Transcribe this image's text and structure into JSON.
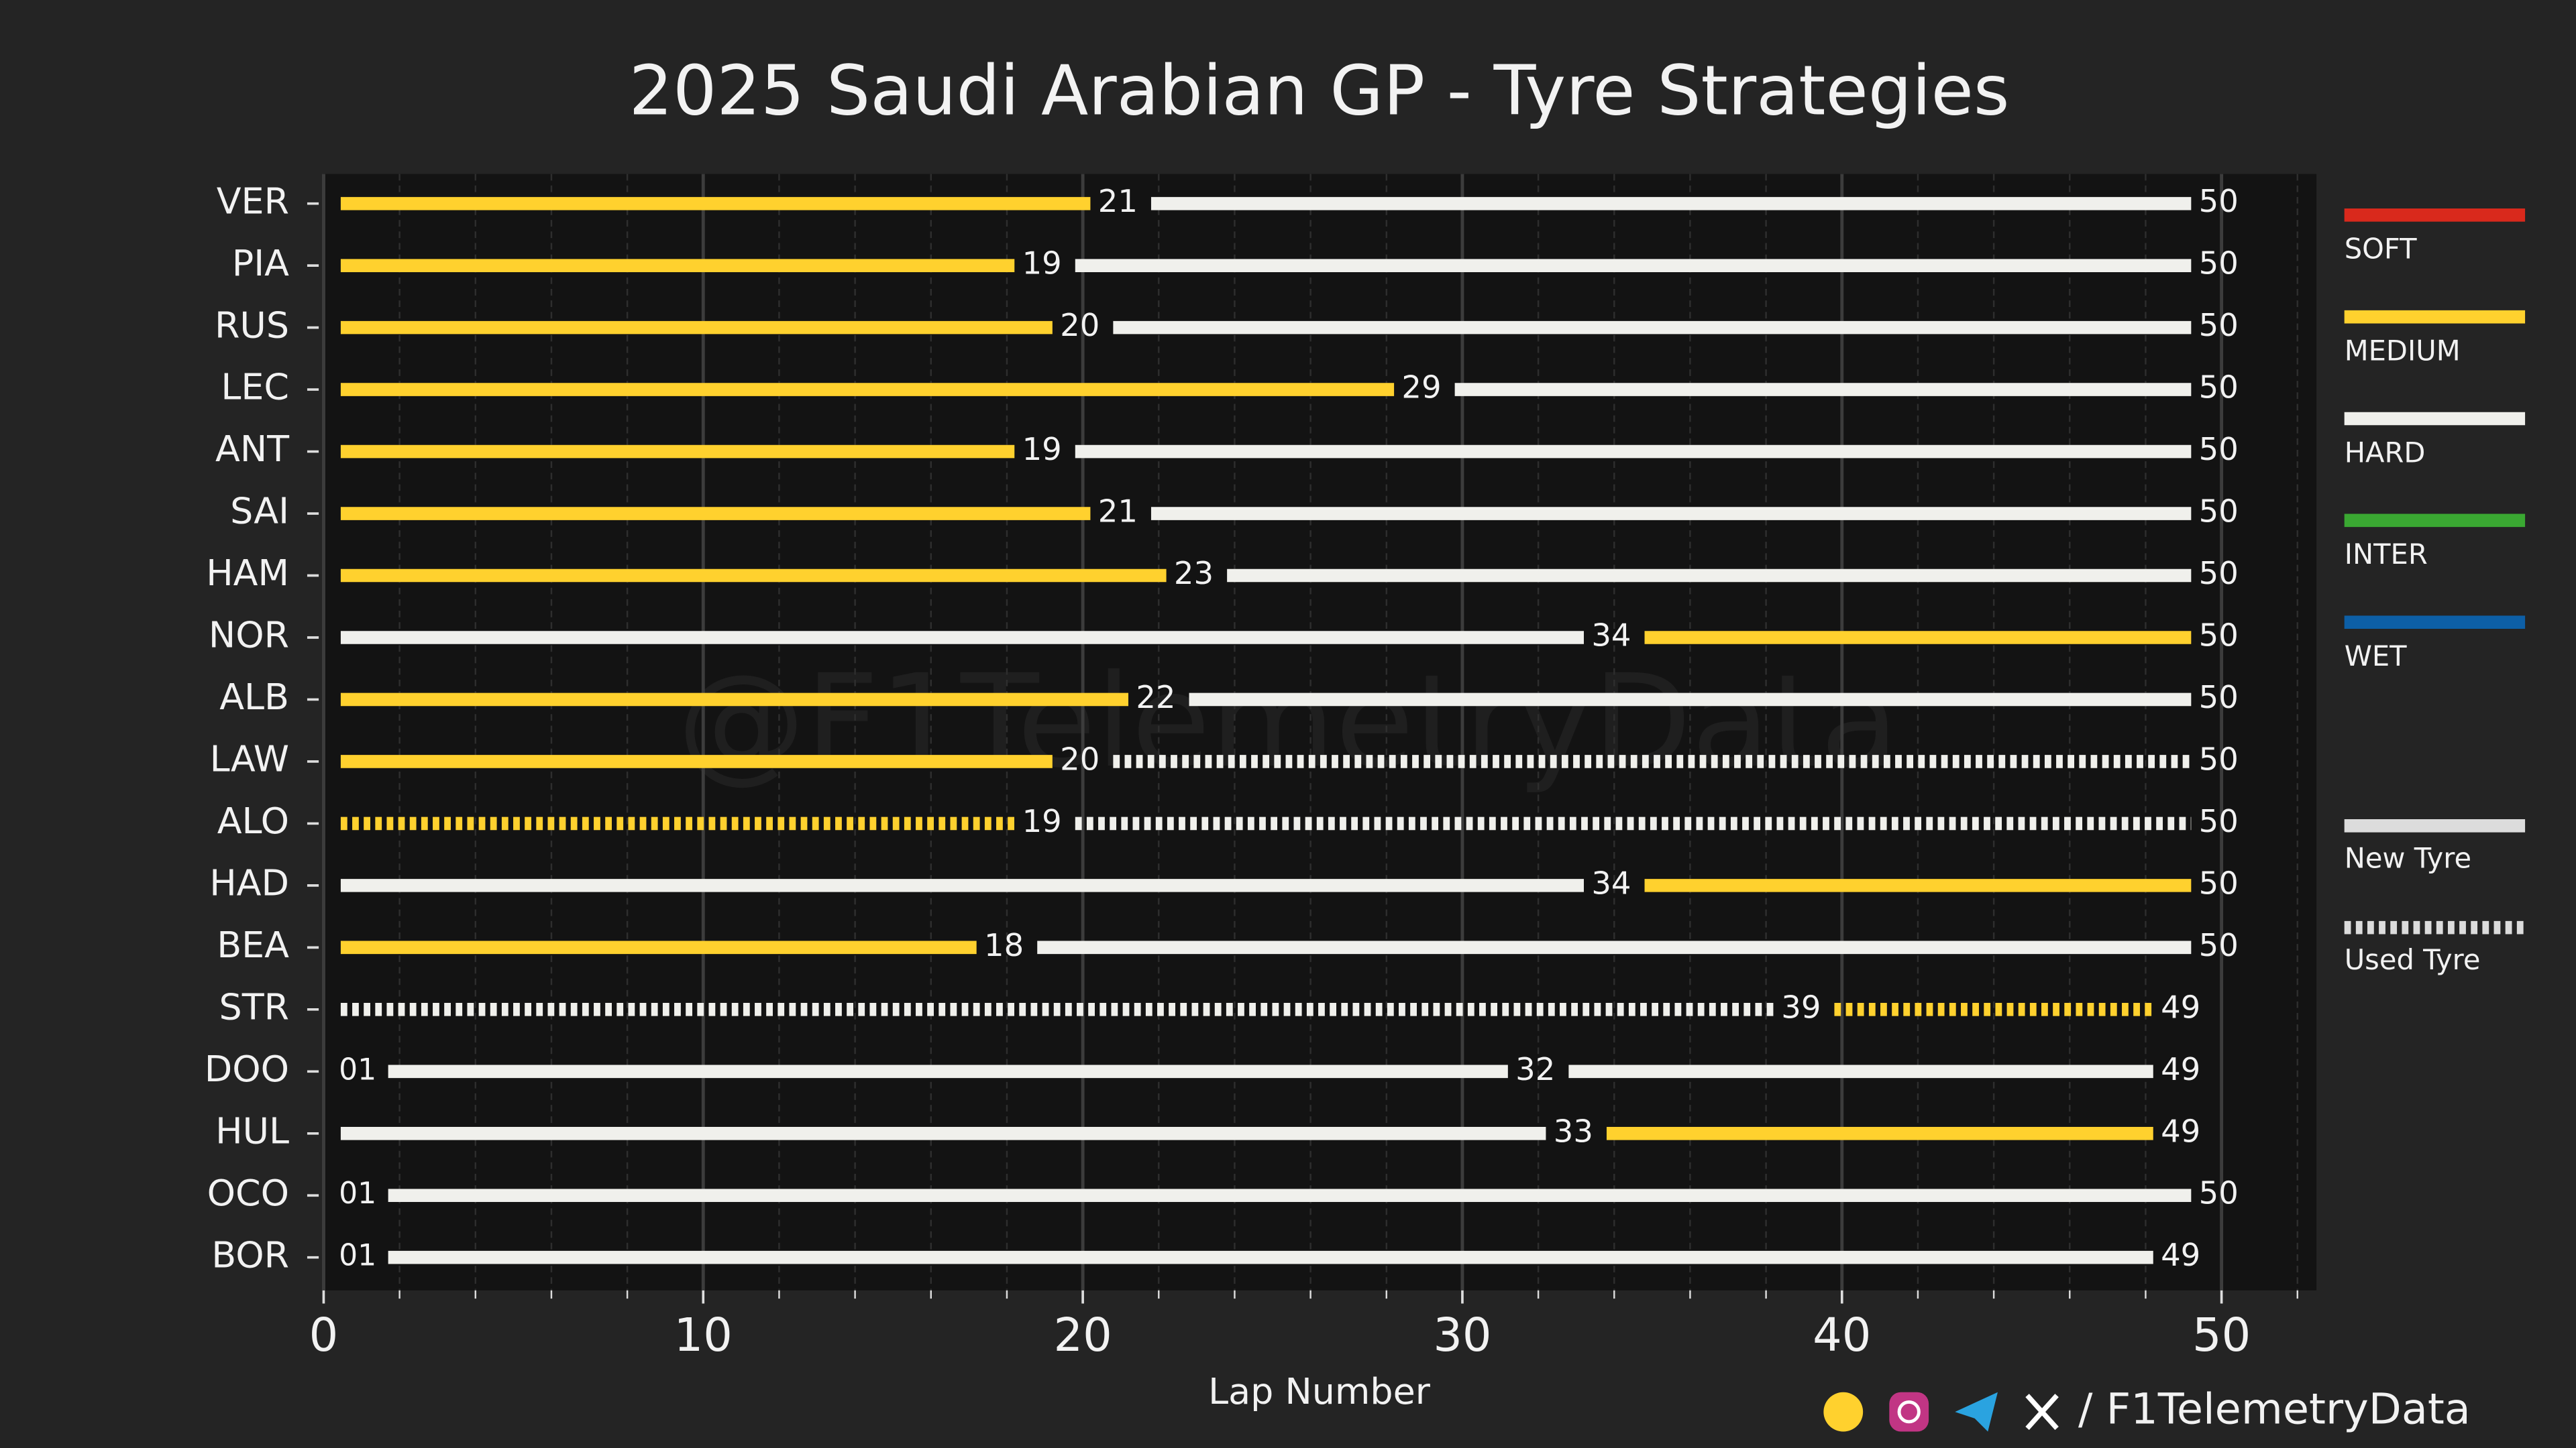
{
  "chart_data": {
    "type": "tyre-strategy",
    "title": "2025 Saudi Arabian GP - Tyre Strategies",
    "xlabel": "Lap Number",
    "watermark": "@F1TelemetryData",
    "footer": "/ F1TelemetryData",
    "xlim": [
      0,
      52.5
    ],
    "xticks": [
      0,
      10,
      20,
      30,
      40,
      50
    ],
    "minor_xticks": [
      2,
      4,
      6,
      8,
      12,
      14,
      16,
      18,
      22,
      24,
      26,
      28,
      32,
      34,
      36,
      38,
      42,
      44,
      46,
      48,
      52
    ],
    "grid": true,
    "compounds": [
      {
        "name": "SOFT",
        "color": "#d9291c"
      },
      {
        "name": "MEDIUM",
        "color": "#ffd12e"
      },
      {
        "name": "HARD",
        "color": "#f0f0ec"
      },
      {
        "name": "INTER",
        "color": "#3aa832"
      },
      {
        "name": "WET",
        "color": "#0d5fa6"
      }
    ],
    "tyre_states": [
      {
        "name": "New Tyre",
        "used": false
      },
      {
        "name": "Used Tyre",
        "used": true
      }
    ],
    "drivers": [
      {
        "name": "VER",
        "start": 0,
        "stints": [
          {
            "compound": 1,
            "end": 21,
            "used": false
          },
          {
            "compound": 2,
            "end": 50,
            "used": false
          }
        ]
      },
      {
        "name": "PIA",
        "start": 0,
        "stints": [
          {
            "compound": 1,
            "end": 19,
            "used": false
          },
          {
            "compound": 2,
            "end": 50,
            "used": false
          }
        ]
      },
      {
        "name": "RUS",
        "start": 0,
        "stints": [
          {
            "compound": 1,
            "end": 20,
            "used": false
          },
          {
            "compound": 2,
            "end": 50,
            "used": false
          }
        ]
      },
      {
        "name": "LEC",
        "start": 0,
        "stints": [
          {
            "compound": 1,
            "end": 29,
            "used": false
          },
          {
            "compound": 2,
            "end": 50,
            "used": false
          }
        ]
      },
      {
        "name": "ANT",
        "start": 0,
        "stints": [
          {
            "compound": 1,
            "end": 19,
            "used": false
          },
          {
            "compound": 2,
            "end": 50,
            "used": false
          }
        ]
      },
      {
        "name": "SAI",
        "start": 0,
        "stints": [
          {
            "compound": 1,
            "end": 21,
            "used": false
          },
          {
            "compound": 2,
            "end": 50,
            "used": false
          }
        ]
      },
      {
        "name": "HAM",
        "start": 0,
        "stints": [
          {
            "compound": 1,
            "end": 23,
            "used": false
          },
          {
            "compound": 2,
            "end": 50,
            "used": false
          }
        ]
      },
      {
        "name": "NOR",
        "start": 0,
        "stints": [
          {
            "compound": 2,
            "end": 34,
            "used": false
          },
          {
            "compound": 1,
            "end": 50,
            "used": false
          }
        ]
      },
      {
        "name": "ALB",
        "start": 0,
        "stints": [
          {
            "compound": 1,
            "end": 22,
            "used": false
          },
          {
            "compound": 2,
            "end": 50,
            "used": false
          }
        ]
      },
      {
        "name": "LAW",
        "start": 0,
        "stints": [
          {
            "compound": 1,
            "end": 20,
            "used": false
          },
          {
            "compound": 2,
            "end": 50,
            "used": true
          }
        ]
      },
      {
        "name": "ALO",
        "start": 0,
        "stints": [
          {
            "compound": 1,
            "end": 19,
            "used": true
          },
          {
            "compound": 2,
            "end": 50,
            "used": true
          }
        ]
      },
      {
        "name": "HAD",
        "start": 0,
        "stints": [
          {
            "compound": 2,
            "end": 34,
            "used": false
          },
          {
            "compound": 1,
            "end": 50,
            "used": false
          }
        ]
      },
      {
        "name": "BEA",
        "start": 0,
        "stints": [
          {
            "compound": 1,
            "end": 18,
            "used": false
          },
          {
            "compound": 2,
            "end": 50,
            "used": false
          }
        ]
      },
      {
        "name": "STR",
        "start": 0,
        "stints": [
          {
            "compound": 2,
            "end": 39,
            "used": true
          },
          {
            "compound": 1,
            "end": 49,
            "used": true
          }
        ]
      },
      {
        "name": "DOO",
        "start": 1,
        "start_label": "01",
        "stints": [
          {
            "compound": 2,
            "end": 32,
            "used": false
          },
          {
            "compound": 2,
            "end": 49,
            "used": false
          }
        ]
      },
      {
        "name": "HUL",
        "start": 0,
        "stints": [
          {
            "compound": 2,
            "end": 33,
            "used": false
          },
          {
            "compound": 1,
            "end": 49,
            "used": false
          }
        ]
      },
      {
        "name": "OCO",
        "start": 1,
        "start_label": "01",
        "stints": [
          {
            "compound": 2,
            "end": 50,
            "used": false
          }
        ]
      },
      {
        "name": "BOR",
        "start": 1,
        "start_label": "01",
        "stints": [
          {
            "compound": 2,
            "end": 49,
            "used": false
          }
        ]
      }
    ]
  }
}
